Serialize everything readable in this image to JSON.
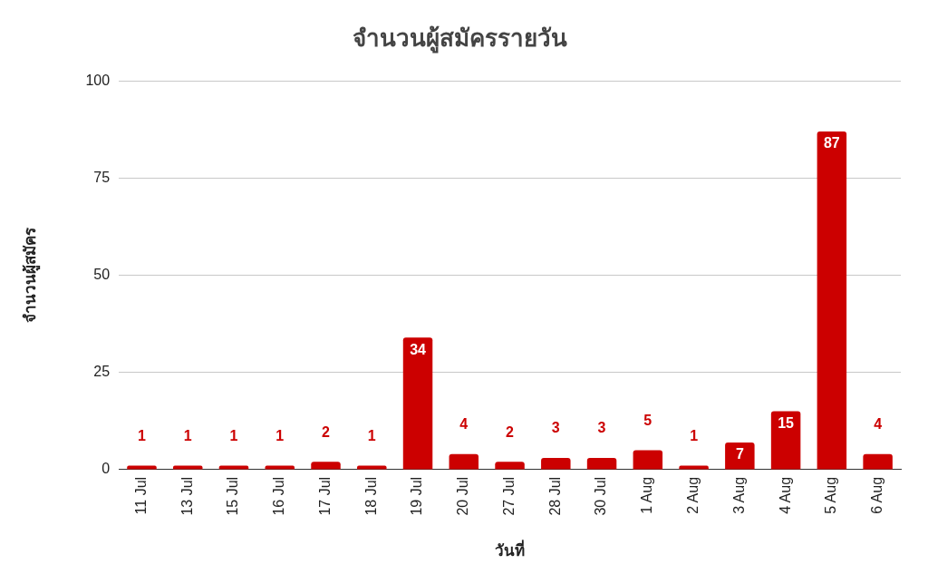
{
  "chart_data": {
    "type": "bar",
    "title": "จำนวนผู้สมัครรายวัน",
    "xlabel": "วันที่",
    "ylabel": "จำนวนผู้สมัคร",
    "categories": [
      "11 Jul",
      "13 Jul",
      "15 Jul",
      "16 Jul",
      "17 Jul",
      "18 Jul",
      "19 Jul",
      "20 Jul",
      "27 Jul",
      "28 Jul",
      "30 Jul",
      "1 Aug",
      "2 Aug",
      "3 Aug",
      "4 Aug",
      "5 Aug",
      "6 Aug"
    ],
    "values": [
      1,
      1,
      1,
      1,
      2,
      1,
      34,
      4,
      2,
      3,
      3,
      5,
      1,
      7,
      15,
      87,
      4
    ],
    "color": "#cc0000",
    "ylim": [
      0,
      100
    ],
    "yticks": [
      0,
      25,
      50,
      75,
      100
    ],
    "grid": "y",
    "legend": false,
    "data_labels": true
  }
}
